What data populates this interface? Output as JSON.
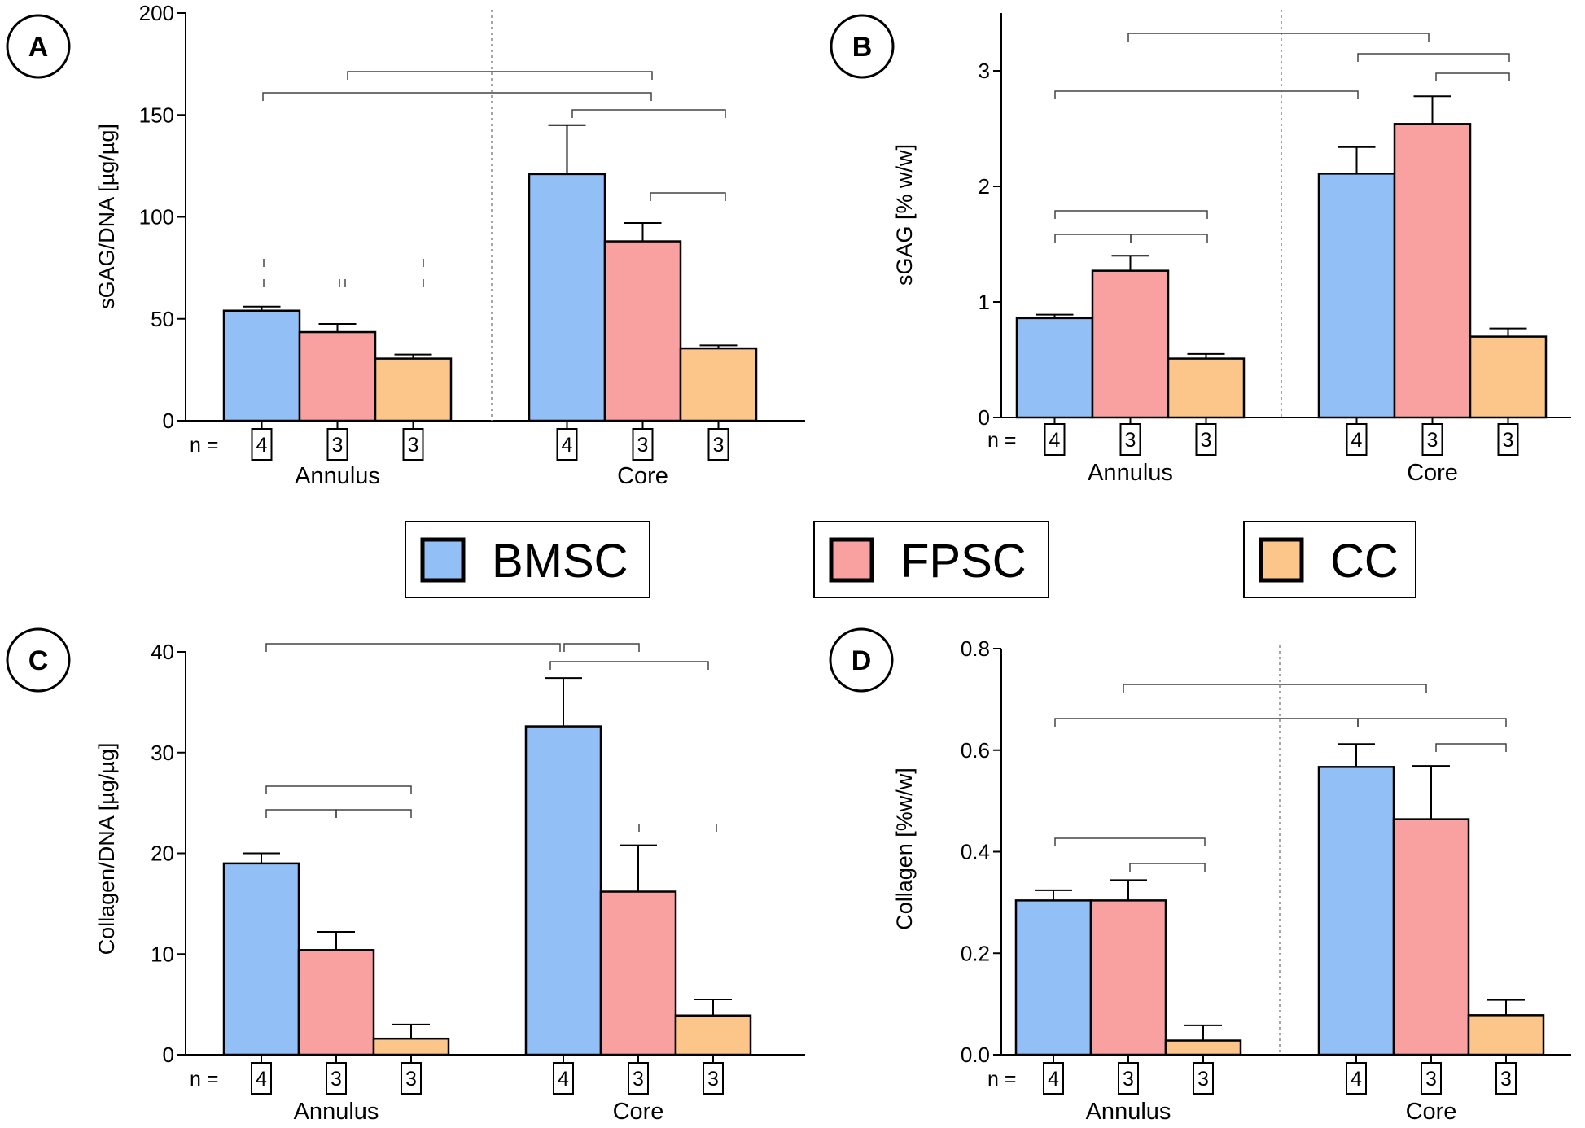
{
  "legend": [
    {
      "label": "BMSC",
      "color": "#93bff7"
    },
    {
      "label": "FPSC",
      "color": "#f9a0a0"
    },
    {
      "label": "CC",
      "color": "#fcc58a"
    }
  ],
  "n_prefix": "n =",
  "chart_data": [
    {
      "panel": "A",
      "type": "bar",
      "ylabel": "sGAG/DNA [µg/µg]",
      "ylim": [
        0,
        200
      ],
      "yticks": [
        0,
        50,
        100,
        150,
        200
      ],
      "ytick_labels": [
        "0",
        "50",
        "100",
        "150",
        "200"
      ],
      "groups": [
        "Annulus",
        "Core"
      ],
      "series": [
        {
          "name": "BMSC",
          "values": [
            54,
            121
          ],
          "errors": [
            2,
            24
          ],
          "n": [
            "4",
            "4"
          ]
        },
        {
          "name": "FPSC",
          "values": [
            43.5,
            88
          ],
          "errors": [
            4,
            9
          ],
          "n": [
            "3",
            "3"
          ]
        },
        {
          "name": "CC",
          "values": [
            30.5,
            35.5
          ],
          "errors": [
            2,
            1.5
          ],
          "n": [
            "3",
            "3"
          ]
        }
      ]
    },
    {
      "panel": "B",
      "type": "bar",
      "ylabel": "sGAG [% w/w]",
      "ylim": [
        0,
        3.5
      ],
      "yticks": [
        0,
        1,
        2,
        3
      ],
      "ytick_labels": [
        "0",
        "1",
        "2",
        "3"
      ],
      "groups": [
        "Annulus",
        "Core"
      ],
      "series": [
        {
          "name": "BMSC",
          "values": [
            0.86,
            2.11
          ],
          "errors": [
            0.03,
            0.23
          ],
          "n": [
            "4",
            "4"
          ]
        },
        {
          "name": "FPSC",
          "values": [
            1.27,
            2.54
          ],
          "errors": [
            0.13,
            0.24
          ],
          "n": [
            "3",
            "3"
          ]
        },
        {
          "name": "CC",
          "values": [
            0.51,
            0.7
          ],
          "errors": [
            0.04,
            0.07
          ],
          "n": [
            "3",
            "3"
          ]
        }
      ]
    },
    {
      "panel": "C",
      "type": "bar",
      "ylabel": "Collagen/DNA [µg/µg]",
      "ylim": [
        0,
        40
      ],
      "yticks": [
        0,
        10,
        20,
        30,
        40
      ],
      "ytick_labels": [
        "0",
        "10",
        "20",
        "30",
        "40"
      ],
      "groups": [
        "Annulus",
        "Core"
      ],
      "series": [
        {
          "name": "BMSC",
          "values": [
            19,
            32.6
          ],
          "errors": [
            1,
            4.8
          ],
          "n": [
            "4",
            "4"
          ]
        },
        {
          "name": "FPSC",
          "values": [
            10.4,
            16.2
          ],
          "errors": [
            1.8,
            4.6
          ],
          "n": [
            "3",
            "3"
          ]
        },
        {
          "name": "CC",
          "values": [
            1.6,
            3.9
          ],
          "errors": [
            1.4,
            1.6
          ],
          "n": [
            "3",
            "3"
          ]
        }
      ]
    },
    {
      "panel": "D",
      "type": "bar",
      "ylabel": "Collagen [%w/w]",
      "ylim": [
        0,
        0.8
      ],
      "yticks": [
        0,
        0.2,
        0.4,
        0.6,
        0.8
      ],
      "ytick_labels": [
        "0.0",
        "0.2",
        "0.4",
        "0.6",
        "0.8"
      ],
      "groups": [
        "Annulus",
        "Core"
      ],
      "series": [
        {
          "name": "BMSC",
          "values": [
            0.304,
            0.567
          ],
          "errors": [
            0.02,
            0.045
          ],
          "n": [
            "4",
            "4"
          ]
        },
        {
          "name": "FPSC",
          "values": [
            0.304,
            0.464
          ],
          "errors": [
            0.04,
            0.105
          ],
          "n": [
            "3",
            "3"
          ]
        },
        {
          "name": "CC",
          "values": [
            0.028,
            0.078
          ],
          "errors": [
            0.03,
            0.03
          ],
          "n": [
            "3",
            "3"
          ]
        }
      ]
    }
  ]
}
